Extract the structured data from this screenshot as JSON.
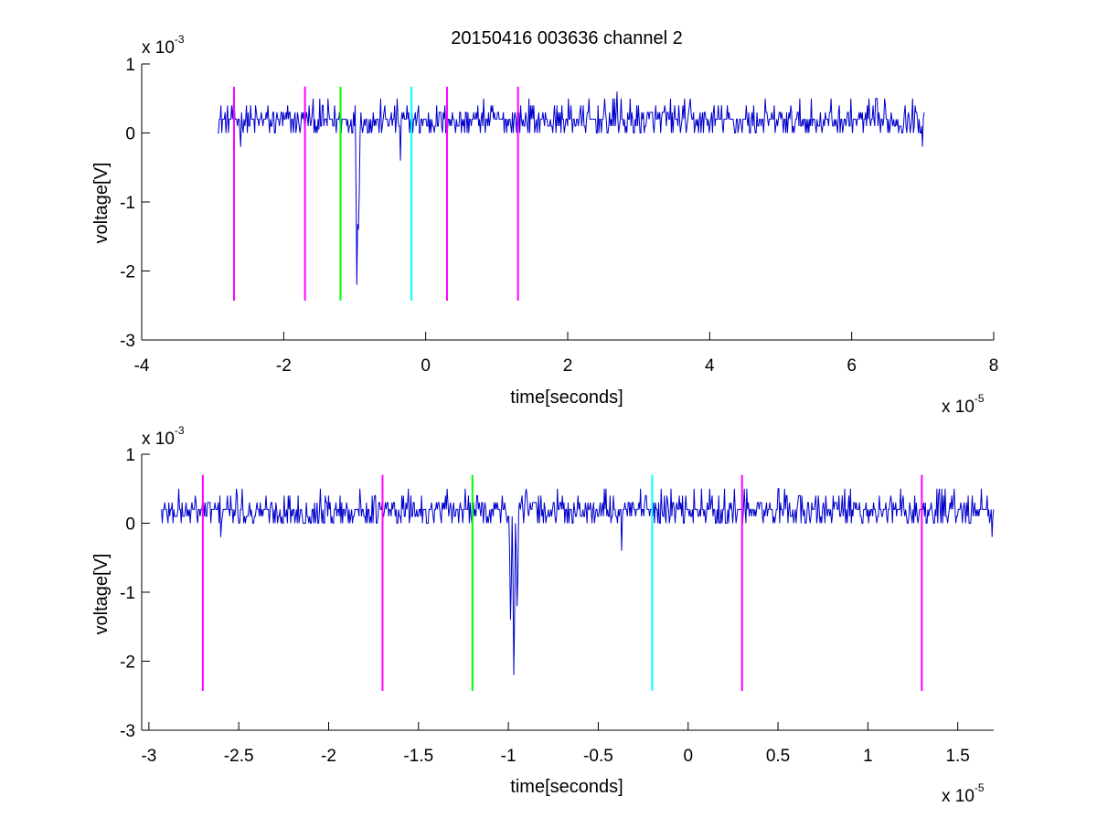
{
  "figure": {
    "title": "20150416 003636 channel 2"
  },
  "chart_data": [
    {
      "type": "line",
      "panel": "top",
      "xlabel": "time[seconds]",
      "ylabel": "voltage[V]",
      "x_multiplier": "x 10",
      "x_exponent": "-5",
      "y_multiplier": "x 10",
      "y_exponent": "-3",
      "xlim": [
        -4,
        8
      ],
      "ylim": [
        -3,
        1
      ],
      "xticks": [
        -4,
        -2,
        0,
        2,
        4,
        6,
        8
      ],
      "xtick_labels": [
        "-4",
        "-2",
        "0",
        "2",
        "4",
        "6",
        "8"
      ],
      "yticks": [
        -3,
        -2,
        -1,
        0,
        1
      ],
      "ytick_labels": [
        "-3",
        "-2",
        "-1",
        "0",
        "1"
      ],
      "grid": false,
      "series": [
        {
          "color": "#0000cc",
          "x_range": [
            -2.93,
            7.02
          ],
          "baseline": 0.18,
          "noise_levels": [
            0.0,
            0.1,
            0.2,
            0.3,
            0.4,
            0.5,
            0.6
          ],
          "events": [
            {
              "x": -2.6,
              "y": -0.2
            },
            {
              "x": -1.5,
              "y": 0.05
            },
            {
              "x": -0.97,
              "y": -2.2
            },
            {
              "x": -0.95,
              "y": -1.4
            },
            {
              "x": -0.35,
              "y": -0.4
            },
            {
              "x": 2.7,
              "y": 0.6
            },
            {
              "x": 7.0,
              "y": -0.2
            }
          ]
        }
      ],
      "markers": [
        {
          "x": -2.7,
          "color": "#ff00ff",
          "y_range": [
            -2.43,
            0.67
          ]
        },
        {
          "x": -1.7,
          "color": "#ff00ff",
          "y_range": [
            -2.43,
            0.67
          ]
        },
        {
          "x": -1.2,
          "color": "#00ff00",
          "y_range": [
            -2.43,
            0.67
          ]
        },
        {
          "x": -0.2,
          "color": "#00ffff",
          "y_range": [
            -2.43,
            0.67
          ]
        },
        {
          "x": 0.3,
          "color": "#ff00ff",
          "y_range": [
            -2.43,
            0.67
          ]
        },
        {
          "x": 1.3,
          "color": "#ff00ff",
          "y_range": [
            -2.43,
            0.67
          ]
        }
      ]
    },
    {
      "type": "line",
      "panel": "bottom",
      "xlabel": "time[seconds]",
      "ylabel": "voltage[V]",
      "x_multiplier": "x 10",
      "x_exponent": "-5",
      "y_multiplier": "x 10",
      "y_exponent": "-3",
      "xlim": [
        -3.04,
        1.7
      ],
      "ylim": [
        -3,
        1
      ],
      "xticks": [
        -3,
        -2.5,
        -2,
        -1.5,
        -1,
        -0.5,
        0,
        0.5,
        1,
        1.5
      ],
      "xtick_labels": [
        "-3",
        "-2.5",
        "-2",
        "-1.5",
        "-1",
        "-0.5",
        "0",
        "0.5",
        "1",
        "1.5"
      ],
      "yticks": [
        -3,
        -2,
        -1,
        0,
        1
      ],
      "ytick_labels": [
        "-3",
        "-2",
        "-1",
        "0",
        "1"
      ],
      "grid": false,
      "series": [
        {
          "color": "#0000cc",
          "x_range": [
            -2.93,
            1.7
          ],
          "baseline": 0.18,
          "noise_levels": [
            0.0,
            0.1,
            0.2,
            0.3,
            0.4,
            0.5,
            0.6
          ],
          "events": [
            {
              "x": -2.6,
              "y": -0.2
            },
            {
              "x": -0.99,
              "y": -1.4
            },
            {
              "x": -0.97,
              "y": -2.2
            },
            {
              "x": -0.95,
              "y": -1.2
            },
            {
              "x": -0.37,
              "y": -0.4
            },
            {
              "x": 1.69,
              "y": -0.2
            }
          ]
        }
      ],
      "markers": [
        {
          "x": -2.7,
          "color": "#ff00ff",
          "y_range": [
            -2.43,
            0.7
          ]
        },
        {
          "x": -1.7,
          "color": "#ff00ff",
          "y_range": [
            -2.43,
            0.7
          ]
        },
        {
          "x": -1.2,
          "color": "#00ff00",
          "y_range": [
            -2.43,
            0.7
          ]
        },
        {
          "x": -0.2,
          "color": "#00ffff",
          "y_range": [
            -2.43,
            0.7
          ]
        },
        {
          "x": 0.3,
          "color": "#ff00ff",
          "y_range": [
            -2.43,
            0.7
          ]
        },
        {
          "x": 1.3,
          "color": "#ff00ff",
          "y_range": [
            -2.43,
            0.7
          ]
        }
      ]
    }
  ]
}
